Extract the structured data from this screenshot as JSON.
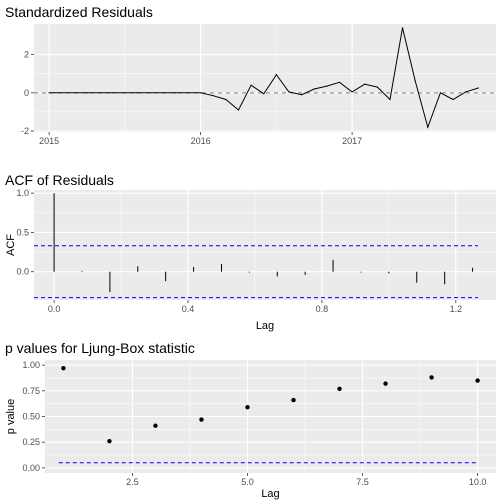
{
  "chart_data": [
    {
      "type": "line",
      "title": "Standardized Residuals",
      "xlabel": "",
      "ylabel": "",
      "xlim": [
        2014.9,
        2017.95
      ],
      "ylim": [
        -2.05,
        3.6
      ],
      "xticks": [
        2015,
        2016,
        2017
      ],
      "xtick_labels": [
        "2015",
        "2016",
        "2017"
      ],
      "yticks": [
        -2,
        0,
        2
      ],
      "ytick_labels": [
        "-2",
        "0",
        "2"
      ],
      "reference_line": 0,
      "x": [
        2015.0,
        2015.083,
        2015.167,
        2015.25,
        2015.333,
        2015.417,
        2015.5,
        2015.583,
        2015.667,
        2015.75,
        2015.833,
        2015.917,
        2016.0,
        2016.083,
        2016.167,
        2016.25,
        2016.333,
        2016.417,
        2016.5,
        2016.583,
        2016.667,
        2016.75,
        2016.833,
        2016.917,
        2017.0,
        2017.083,
        2017.167,
        2017.25,
        2017.333,
        2017.417,
        2017.5,
        2017.583,
        2017.667,
        2017.75,
        2017.833,
        2017.917
      ],
      "values": [
        0,
        0,
        0,
        0,
        0,
        0,
        0,
        0,
        0,
        0,
        0,
        0,
        0,
        -0.15,
        -0.35,
        -0.9,
        0.4,
        -0.05,
        0.95,
        0.05,
        -0.1,
        0.2,
        0.35,
        0.55,
        0.05,
        0.45,
        0.3,
        -0.35,
        3.4,
        0.6,
        -1.8,
        0.0,
        -0.35,
        0.05,
        0.25,
        null
      ]
    },
    {
      "type": "bar",
      "title": "ACF of Residuals",
      "xlabel": "Lag",
      "ylabel": "ACF",
      "xlim": [
        -0.06,
        1.32
      ],
      "ylim": [
        -0.36,
        1.04
      ],
      "xticks": [
        0.0,
        0.4,
        0.8,
        1.2
      ],
      "xtick_labels": [
        "0.0",
        "0.4",
        "0.8",
        "1.2"
      ],
      "yticks": [
        0.0,
        0.5,
        1.0
      ],
      "ytick_labels": [
        "0.0",
        "0.5",
        "1.0"
      ],
      "lags": [
        0.0,
        0.0833,
        0.1667,
        0.25,
        0.3333,
        0.4167,
        0.5,
        0.5833,
        0.6667,
        0.75,
        0.8333,
        0.9167,
        1.0,
        1.0833,
        1.1667,
        1.25
      ],
      "values": [
        1.0,
        0.01,
        -0.26,
        0.07,
        -0.12,
        0.06,
        0.1,
        -0.01,
        -0.06,
        -0.04,
        0.15,
        -0.01,
        -0.02,
        -0.14,
        -0.16,
        0.05
      ],
      "confidence_bounds": [
        0.33,
        -0.33
      ]
    },
    {
      "type": "scatter",
      "title": "p values for Ljung-Box statistic",
      "xlabel": "Lag",
      "ylabel": "p value",
      "xlim": [
        0.6,
        10.4
      ],
      "ylim": [
        -0.05,
        1.05
      ],
      "xticks": [
        2.5,
        5.0,
        7.5,
        10.0
      ],
      "xtick_labels": [
        "2.5",
        "5.0",
        "7.5",
        "10.0"
      ],
      "yticks": [
        0.0,
        0.25,
        0.5,
        0.75,
        1.0
      ],
      "ytick_labels": [
        "0.00",
        "0.25",
        "0.50",
        "0.75",
        "1.00"
      ],
      "x": [
        1,
        2,
        3,
        4,
        5,
        6,
        7,
        8,
        9,
        10
      ],
      "values": [
        0.97,
        0.26,
        0.41,
        0.47,
        0.59,
        0.66,
        0.77,
        0.82,
        0.88,
        0.85
      ],
      "threshold": 0.05
    }
  ],
  "colors": {
    "panel_bg": "#ebebeb",
    "grid": "#ffffff",
    "line": "#000000",
    "bound_line": "#0000ff",
    "reference_line": "#7f7f7f"
  }
}
